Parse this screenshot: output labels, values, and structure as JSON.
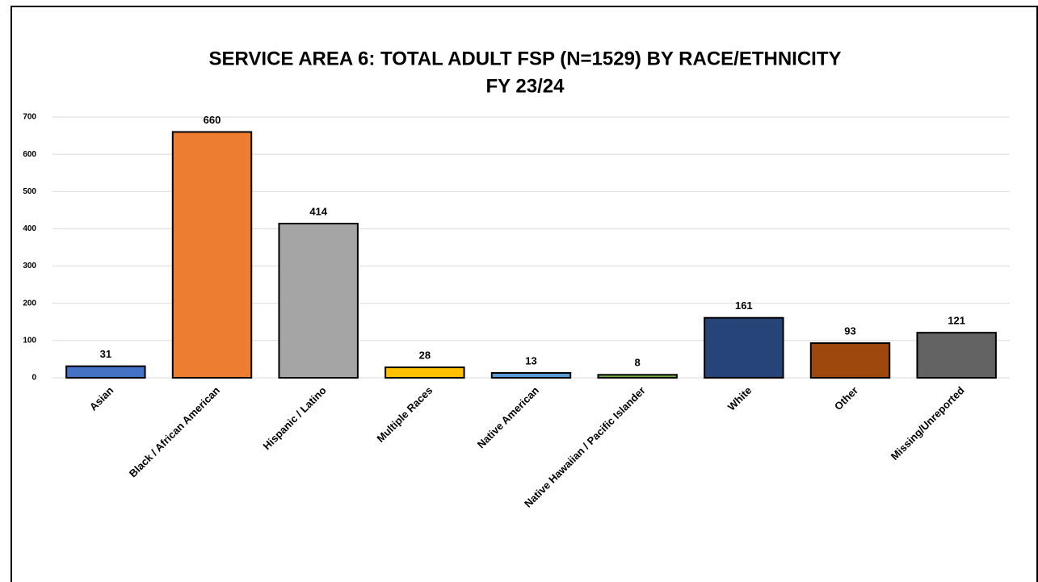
{
  "chart_data": {
    "type": "bar",
    "title": "SERVICE AREA 6: TOTAL ADULT FSP (N=1529) BY RACE/ETHNICITY",
    "subtitle": "FY 23/24",
    "categories": [
      "Asian",
      "Black / African American",
      "Hispanic / Latino",
      "Multiple Races",
      "Native American",
      "Native Hawaiian / Pacific Islander",
      "White",
      "Other",
      "Missing/Unreported"
    ],
    "values": [
      31,
      660,
      414,
      28,
      13,
      8,
      161,
      93,
      121
    ],
    "colors": [
      "#4472c4",
      "#ed7d31",
      "#a5a5a5",
      "#ffc000",
      "#5b9bd5",
      "#70ad47",
      "#264478",
      "#9e480e",
      "#636363"
    ],
    "ylim": [
      0,
      700
    ],
    "yticks": [
      0,
      100,
      200,
      300,
      400,
      500,
      600,
      700
    ],
    "grid": true
  }
}
